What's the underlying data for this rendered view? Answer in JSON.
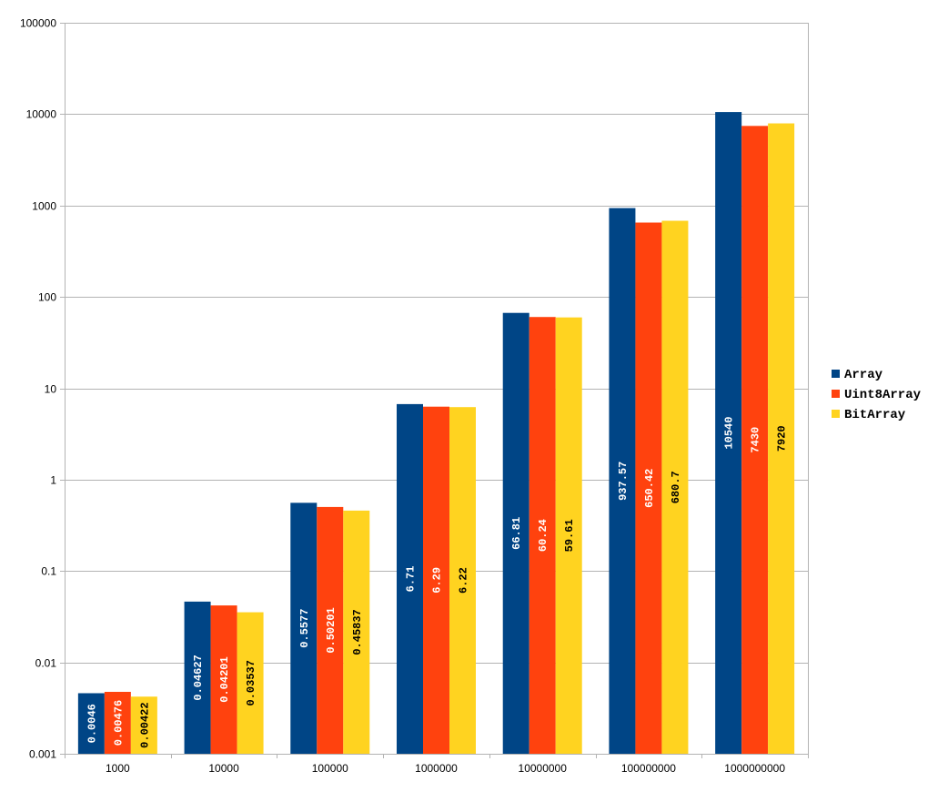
{
  "chart_data": {
    "type": "bar",
    "scale": "log",
    "ylim": [
      0.001,
      100000
    ],
    "y_ticks": [
      "0.001",
      "0.01",
      "0.1",
      "1",
      "10",
      "100",
      "1000",
      "10000",
      "100000"
    ],
    "categories": [
      "1000",
      "10000",
      "100000",
      "1000000",
      "10000000",
      "100000000",
      "1000000000"
    ],
    "series": [
      {
        "name": "Array",
        "color": "#004586",
        "label_color": "#ffffff",
        "values": [
          0.0046,
          0.04627,
          0.5577,
          6.71,
          66.81,
          937.57,
          10540
        ],
        "labels": [
          "0.0046",
          "0.04627",
          "0.5577",
          "6.71",
          "66.81",
          "937.57",
          "10540"
        ]
      },
      {
        "name": "Uint8Array",
        "color": "#ff420e",
        "label_color": "#ffffff",
        "values": [
          0.00476,
          0.04201,
          0.50201,
          6.29,
          60.24,
          650.42,
          7430
        ],
        "labels": [
          "0.00476",
          "0.04201",
          "0.50201",
          "6.29",
          "60.24",
          "650.42",
          "7430"
        ]
      },
      {
        "name": "BitArray",
        "color": "#ffd320",
        "label_color": "#000000",
        "values": [
          0.00422,
          0.03537,
          0.45837,
          6.22,
          59.61,
          680.7,
          7920
        ],
        "labels": [
          "0.00422",
          "0.03537",
          "0.45837",
          "6.22",
          "59.61",
          "680.7",
          "7920"
        ]
      }
    ],
    "grid": true,
    "legend_position": "right",
    "data_labels": "inside-rotated"
  }
}
